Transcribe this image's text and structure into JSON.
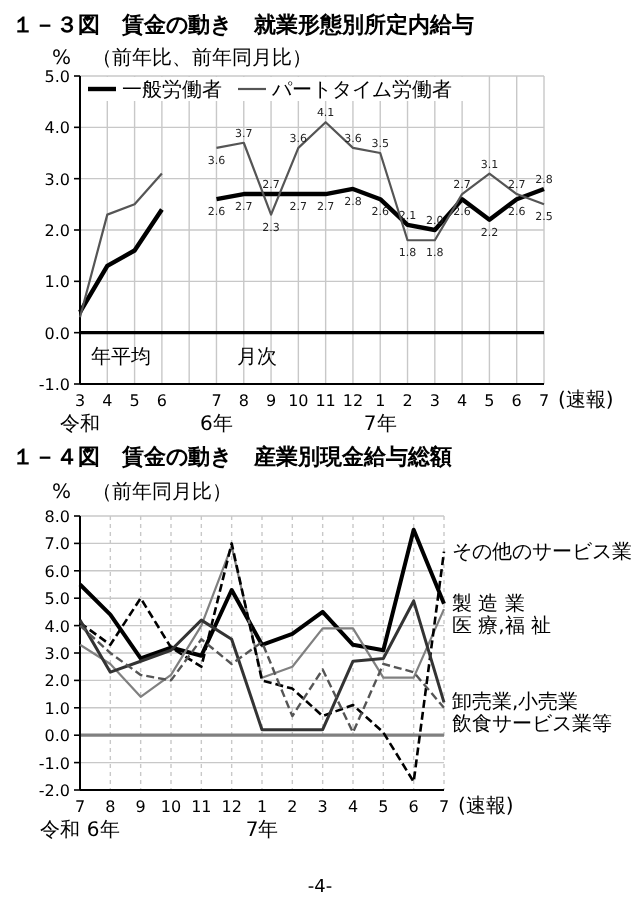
{
  "chart_data": [
    {
      "type": "line",
      "title": "１－３図　賃金の動き　就業形態別所定内給与",
      "ylabel": "%",
      "subtitle": "（前年比、前年同月比）",
      "categories": [
        "3\n令和",
        "4",
        "5",
        "6",
        null,
        "7\n6年",
        "8",
        "9",
        "10",
        "11",
        "12",
        "1\n7年",
        "2",
        "3",
        "4",
        "5",
        "6",
        "7"
      ],
      "series": [
        {
          "name": "一般労働者",
          "color": "#000000",
          "values": [
            0.4,
            1.3,
            1.6,
            2.4,
            null,
            2.6,
            2.7,
            2.7,
            2.7,
            2.7,
            2.8,
            2.6,
            2.1,
            2.0,
            2.6,
            2.2,
            2.6,
            2.8
          ],
          "value_labels": [
            null,
            null,
            null,
            null,
            null,
            "2.6",
            "2.7",
            "2.7",
            "2.7",
            "2.7",
            "2.8",
            "2.6",
            "2.1",
            "2.0",
            "2.6",
            "2.2",
            "2.6",
            "2.8"
          ]
        },
        {
          "name": "パートタイム労働者",
          "color": "#555555",
          "values": [
            0.3,
            2.3,
            2.5,
            3.1,
            null,
            3.6,
            3.7,
            2.3,
            3.6,
            4.1,
            3.6,
            3.5,
            1.8,
            1.8,
            2.7,
            3.1,
            2.7,
            2.5
          ],
          "value_labels": [
            null,
            null,
            null,
            null,
            null,
            "3.6",
            "3.7",
            "2.3",
            "3.6",
            "4.1",
            "3.6",
            "3.5",
            "1.8",
            "1.8",
            "2.7",
            "3.1",
            "2.7",
            "2.5"
          ]
        }
      ],
      "ylim": [
        -1,
        5
      ],
      "yticks": [
        {
          "value": -1,
          "label": "-1.0"
        },
        {
          "value": 0,
          "label": "0.0"
        },
        {
          "value": 1,
          "label": "1.0"
        },
        {
          "value": 2,
          "label": "2.0"
        },
        {
          "value": 3,
          "label": "3.0"
        },
        {
          "value": 4,
          "label": "4.0"
        },
        {
          "value": 5,
          "label": "5.0"
        }
      ],
      "grid": true,
      "legend": "top left",
      "line_style": "solid",
      "marker": "none",
      "ref_lines": [
        {
          "axis": "y",
          "value": 0,
          "color": "#000000"
        }
      ],
      "annotations": [
        "年平均",
        "月次",
        "(速報)"
      ]
    },
    {
      "type": "line",
      "title": "１－４図　賃金の動き　産業別現金給与総額",
      "ylabel": "%",
      "subtitle": "（前年同月比）",
      "categories": [
        "7\n令和 6年",
        "8",
        "9",
        "10",
        "11",
        "12",
        "1\n7年",
        "2",
        "3",
        "4",
        "5",
        "6",
        "7"
      ],
      "series": [
        {
          "name": "製 造 業",
          "color": "#000000",
          "values": [
            5.5,
            4.4,
            2.8,
            3.2,
            2.9,
            5.3,
            3.3,
            3.7,
            4.5,
            3.3,
            3.1,
            7.5,
            4.8
          ]
        },
        {
          "name": "医 療,福 祉",
          "color": "#808080",
          "values": [
            3.3,
            2.6,
            1.4,
            2.2,
            4.0,
            6.9,
            2.1,
            2.5,
            3.9,
            3.9,
            2.1,
            2.1,
            4.6
          ]
        },
        {
          "name": "その他のサービス業",
          "color": "#000000",
          "line_style": "dashed",
          "values": [
            4.1,
            3.3,
            5.0,
            3.2,
            2.5,
            7.0,
            2.0,
            1.7,
            0.7,
            1.1,
            0.1,
            -1.7,
            6.7
          ]
        },
        {
          "name": "卸売業,小売業",
          "color": "#333333",
          "values": [
            4.2,
            2.3,
            2.7,
            3.1,
            4.2,
            3.5,
            0.2,
            0.2,
            0.2,
            2.7,
            2.8,
            4.9,
            1.2
          ]
        },
        {
          "name": "飲食サービス業等",
          "color": "#555555",
          "line_style": "dashed",
          "values": [
            4.0,
            3.0,
            2.2,
            2.0,
            3.5,
            2.6,
            3.4,
            0.7,
            2.4,
            0.1,
            2.6,
            2.3,
            1.0
          ]
        }
      ],
      "ylim": [
        -2,
        8
      ],
      "yticks": [
        {
          "value": -2,
          "label": "-2.0"
        },
        {
          "value": -1,
          "label": "-1.0"
        },
        {
          "value": 0,
          "label": "0.0"
        },
        {
          "value": 1,
          "label": "1.0"
        },
        {
          "value": 2,
          "label": "2.0"
        },
        {
          "value": 3,
          "label": "3.0"
        },
        {
          "value": 4,
          "label": "4.0"
        },
        {
          "value": 5,
          "label": "5.0"
        },
        {
          "value": 6,
          "label": "6.0"
        },
        {
          "value": 7,
          "label": "7.0"
        },
        {
          "value": 8,
          "label": "8.0"
        }
      ],
      "grid": true,
      "legend": false,
      "line_style": "solid",
      "marker": "none",
      "ref_lines": [
        {
          "axis": "y",
          "value": 0,
          "color": "#808080"
        }
      ],
      "annotations": [
        "(速報)",
        "-4-"
      ]
    }
  ]
}
